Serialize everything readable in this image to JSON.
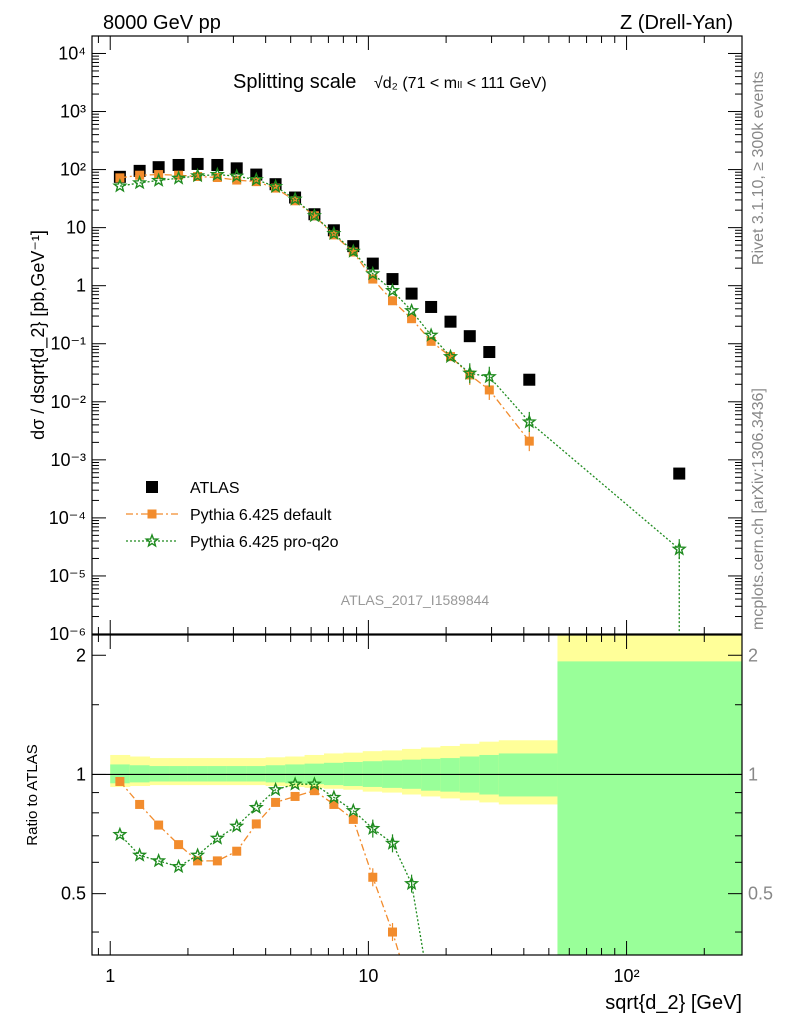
{
  "header": {
    "left": "8000 GeV pp",
    "right": "Z (Drell-Yan)"
  },
  "side_labels": {
    "rivet": "Rivet 3.1.10, ≥ 300k events",
    "mcplots": "mcplots.cern.ch [arXiv:1306.3436]"
  },
  "chart_data": [
    {
      "type": "scatter",
      "title": "Splitting scale",
      "title_sub": "√d₂ (71 < mₗₗ < 111 GeV)",
      "ylabel": "dσ / dsqrt{d_2} [pb,GeV⁻¹]",
      "watermark": "ATLAS_2017_I1589844",
      "x_scale": "log",
      "y_scale": "log",
      "xlim": [
        0.85,
        280
      ],
      "ylim": [
        1e-06,
        20000.0
      ],
      "y_ticks": [
        "10⁻⁶",
        "10⁻⁵",
        "10⁻⁴",
        "10⁻³",
        "10⁻²",
        "10⁻¹",
        "1",
        "10",
        "10²",
        "10³",
        "10⁴"
      ],
      "legend_position": "bottom-left",
      "series": [
        {
          "name": "ATLAS",
          "color": "#000000",
          "marker": "square",
          "x": [
            1.09,
            1.3,
            1.54,
            1.84,
            2.18,
            2.6,
            3.09,
            3.68,
            4.37,
            5.2,
            6.18,
            7.35,
            8.74,
            10.4,
            12.4,
            14.7,
            17.5,
            20.8,
            24.7,
            29.4,
            42.0,
            160.0
          ],
          "y": [
            75,
            95,
            110,
            120,
            125,
            120,
            105,
            82,
            56,
            33,
            17,
            9.0,
            4.8,
            2.4,
            1.3,
            0.73,
            0.43,
            0.24,
            0.135,
            0.072,
            0.024,
            0.00058
          ]
        },
        {
          "name": "Pythia 6.425 default",
          "color": "#f28c2d",
          "marker": "square-small",
          "line": "dashdot",
          "x": [
            1.09,
            1.3,
            1.54,
            1.84,
            2.18,
            2.6,
            3.09,
            3.68,
            4.37,
            5.2,
            6.18,
            7.35,
            8.74,
            10.4,
            12.4,
            14.7,
            17.5,
            20.8,
            24.7,
            29.4,
            42.0
          ],
          "y": [
            72,
            80,
            82,
            80,
            76,
            73,
            66,
            62,
            48,
            29,
            16,
            7.5,
            3.8,
            1.3,
            0.55,
            0.27,
            0.11,
            0.06,
            0.029,
            0.016,
            0.0021
          ]
        },
        {
          "name": "Pythia 6.425 pro-q2o",
          "color": "#1f8b1f",
          "marker": "star",
          "line": "dotted",
          "x": [
            1.09,
            1.3,
            1.54,
            1.84,
            2.18,
            2.6,
            3.09,
            3.68,
            4.37,
            5.2,
            6.18,
            7.35,
            8.74,
            10.4,
            12.4,
            14.7,
            17.5,
            20.8,
            24.7,
            29.4,
            42.0,
            160.0
          ],
          "y": [
            52,
            59,
            65,
            71,
            78,
            82,
            77,
            67,
            51,
            31,
            16,
            7.9,
            3.9,
            1.6,
            0.82,
            0.37,
            0.14,
            0.06,
            0.031,
            0.027,
            0.0045,
            2.9e-05
          ]
        }
      ]
    },
    {
      "type": "scatter",
      "ylabel": "Ratio to ATLAS",
      "xlabel": "sqrt{d_2} [GeV]",
      "x_scale": "log",
      "xlim": [
        0.85,
        280
      ],
      "ylim": [
        0.35,
        2.25
      ],
      "x_ticks": [
        "1",
        "10",
        "10²"
      ],
      "y_ticks": [
        "0.5",
        "1",
        "2"
      ],
      "bands": {
        "bin_edges": [
          1.0,
          1.19,
          1.42,
          1.69,
          2.0,
          2.38,
          2.83,
          3.36,
          4.0,
          4.76,
          5.66,
          6.73,
          8.0,
          9.51,
          11.3,
          13.5,
          16.0,
          19.0,
          22.6,
          26.9,
          32.0,
          54.0,
          280.0
        ],
        "stat_up": [
          1.06,
          1.055,
          1.05,
          1.05,
          1.05,
          1.05,
          1.05,
          1.05,
          1.055,
          1.06,
          1.065,
          1.07,
          1.075,
          1.08,
          1.085,
          1.09,
          1.095,
          1.1,
          1.11,
          1.12,
          1.13,
          1.93
        ],
        "stat_dn": [
          0.95,
          0.955,
          0.96,
          0.96,
          0.96,
          0.96,
          0.96,
          0.96,
          0.955,
          0.95,
          0.945,
          0.94,
          0.935,
          0.93,
          0.925,
          0.92,
          0.91,
          0.905,
          0.9,
          0.89,
          0.88,
          0.3
        ],
        "syst_up": [
          1.12,
          1.11,
          1.1,
          1.1,
          1.1,
          1.1,
          1.1,
          1.1,
          1.105,
          1.11,
          1.12,
          1.13,
          1.135,
          1.145,
          1.15,
          1.16,
          1.17,
          1.18,
          1.195,
          1.21,
          1.22,
          2.5
        ],
        "syst_dn": [
          0.93,
          0.935,
          0.94,
          0.94,
          0.94,
          0.94,
          0.94,
          0.94,
          0.935,
          0.93,
          0.925,
          0.92,
          0.915,
          0.905,
          0.9,
          0.89,
          0.88,
          0.87,
          0.86,
          0.85,
          0.84,
          0.3
        ],
        "stat_color": "#99ff99",
        "syst_color": "#ffff99"
      },
      "series": [
        {
          "name": "Pythia 6.425 default",
          "color": "#f28c2d",
          "x": [
            1.09,
            1.3,
            1.54,
            1.84,
            2.18,
            2.6,
            3.09,
            3.68,
            4.37,
            5.2,
            6.18,
            7.35,
            8.74,
            10.4,
            12.4
          ],
          "y": [
            0.96,
            0.84,
            0.745,
            0.665,
            0.605,
            0.605,
            0.64,
            0.75,
            0.85,
            0.88,
            0.91,
            0.84,
            0.77,
            0.55,
            0.4
          ]
        },
        {
          "name": "Pythia 6.425 pro-q2o",
          "color": "#1f8b1f",
          "x": [
            1.09,
            1.3,
            1.54,
            1.84,
            2.18,
            2.6,
            3.09,
            3.68,
            4.37,
            5.2,
            6.18,
            7.35,
            8.74,
            10.4,
            12.4,
            14.7
          ],
          "y": [
            0.705,
            0.625,
            0.605,
            0.585,
            0.625,
            0.69,
            0.74,
            0.825,
            0.915,
            0.945,
            0.945,
            0.875,
            0.81,
            0.73,
            0.67,
            0.53
          ]
        }
      ]
    }
  ]
}
